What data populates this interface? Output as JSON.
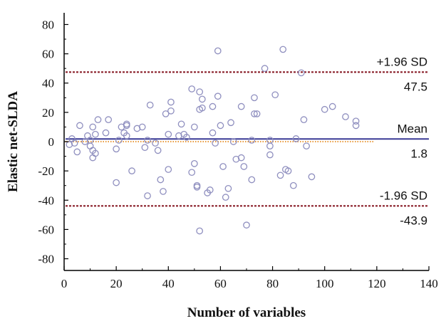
{
  "chart_data": {
    "type": "scatter",
    "title": "",
    "xlabel": "Number of variables",
    "ylabel": "Elastic net-SLDA",
    "xlim": [
      0,
      140
    ],
    "ylim": [
      -88,
      88
    ],
    "x_ticks": [
      0,
      20,
      40,
      60,
      80,
      100,
      120,
      140
    ],
    "y_ticks": [
      -80,
      -60,
      -40,
      -20,
      0,
      20,
      40,
      60,
      80
    ],
    "grid": false,
    "colors": {
      "points": "#8f8fbf",
      "mean_line": "#3a3a95",
      "sd_line": "#8a1f2a",
      "zero_line": "#e89a3c"
    },
    "reference_lines": [
      {
        "label": "+1.96 SD",
        "value": 47.5,
        "value_label": "47.5"
      },
      {
        "label": "Mean",
        "value": 1.8,
        "value_label": "1.8"
      },
      {
        "label": "-1.96 SD",
        "value": -43.9,
        "value_label": "-43.9"
      }
    ],
    "points": [
      [
        2,
        -2
      ],
      [
        3,
        2
      ],
      [
        4,
        -1
      ],
      [
        5,
        -7
      ],
      [
        6,
        11
      ],
      [
        8,
        0
      ],
      [
        9,
        4
      ],
      [
        10,
        -3
      ],
      [
        10,
        1
      ],
      [
        11,
        -11
      ],
      [
        11,
        10
      ],
      [
        11,
        -6
      ],
      [
        12,
        -8
      ],
      [
        12,
        5
      ],
      [
        13,
        15
      ],
      [
        16,
        6
      ],
      [
        17,
        15
      ],
      [
        20,
        -28
      ],
      [
        20,
        -5
      ],
      [
        21,
        1
      ],
      [
        22,
        10
      ],
      [
        23,
        6
      ],
      [
        24,
        4
      ],
      [
        24,
        11
      ],
      [
        24,
        12
      ],
      [
        26,
        -20
      ],
      [
        28,
        9
      ],
      [
        30,
        10
      ],
      [
        31,
        -4
      ],
      [
        32,
        -37
      ],
      [
        32,
        1
      ],
      [
        33,
        25
      ],
      [
        35,
        -1
      ],
      [
        36,
        -6
      ],
      [
        37,
        -26
      ],
      [
        38,
        -34
      ],
      [
        39,
        19
      ],
      [
        40,
        -19
      ],
      [
        40,
        5
      ],
      [
        41,
        21
      ],
      [
        41,
        27
      ],
      [
        44,
        4
      ],
      [
        45,
        12
      ],
      [
        46,
        5
      ],
      [
        47,
        3
      ],
      [
        49,
        -21
      ],
      [
        49,
        36
      ],
      [
        50,
        -15
      ],
      [
        50,
        10
      ],
      [
        51,
        -30
      ],
      [
        51,
        -31
      ],
      [
        52,
        -61
      ],
      [
        52,
        34
      ],
      [
        52,
        22
      ],
      [
        53,
        29
      ],
      [
        53,
        23
      ],
      [
        55,
        -35
      ],
      [
        56,
        -33
      ],
      [
        57,
        6
      ],
      [
        57,
        24
      ],
      [
        58,
        -1
      ],
      [
        59,
        62
      ],
      [
        59,
        31
      ],
      [
        60,
        11
      ],
      [
        61,
        -17
      ],
      [
        62,
        -38
      ],
      [
        63,
        -32
      ],
      [
        64,
        13
      ],
      [
        65,
        0
      ],
      [
        66,
        -12
      ],
      [
        68,
        24
      ],
      [
        68,
        -11
      ],
      [
        69,
        -17
      ],
      [
        70,
        -57
      ],
      [
        72,
        1
      ],
      [
        72,
        -26
      ],
      [
        73,
        19
      ],
      [
        73,
        30
      ],
      [
        74,
        19
      ],
      [
        77,
        50
      ],
      [
        79,
        -9
      ],
      [
        79,
        -3
      ],
      [
        79,
        1
      ],
      [
        81,
        32
      ],
      [
        83,
        -23
      ],
      [
        84,
        63
      ],
      [
        85,
        -19
      ],
      [
        86,
        -20
      ],
      [
        88,
        -30
      ],
      [
        89,
        2
      ],
      [
        91,
        47
      ],
      [
        92,
        15
      ],
      [
        93,
        -3
      ],
      [
        95,
        -24
      ],
      [
        100,
        22
      ],
      [
        103,
        24
      ],
      [
        108,
        17
      ],
      [
        112,
        14
      ],
      [
        112,
        11
      ]
    ]
  }
}
